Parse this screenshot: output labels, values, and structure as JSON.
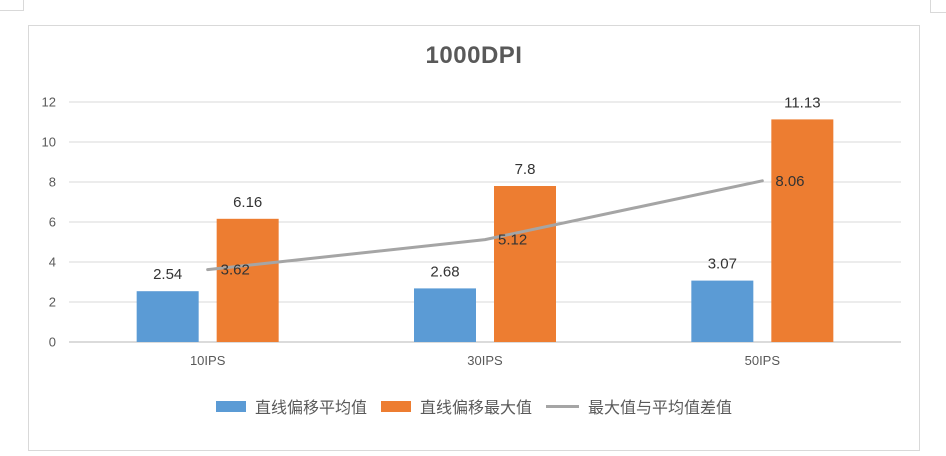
{
  "chart_data": {
    "type": "bar",
    "subtype": "clustered-column-with-line-overlay",
    "title": "1000DPI",
    "categories": [
      "10IPS",
      "30IPS",
      "50IPS"
    ],
    "series": [
      {
        "name": "直线偏移平均值",
        "type": "bar",
        "color": "#5B9BD5",
        "values": [
          2.54,
          2.68,
          3.07
        ],
        "labels": [
          "2.54",
          "2.68",
          "3.07"
        ]
      },
      {
        "name": "直线偏移最大值",
        "type": "bar",
        "color": "#ED7D31",
        "values": [
          6.16,
          7.8,
          11.13
        ],
        "labels": [
          "6.16",
          "7.8",
          "11.13"
        ]
      },
      {
        "name": "最大值与平均值差值",
        "type": "line",
        "color": "#A5A5A5",
        "values": [
          3.62,
          5.12,
          8.06
        ],
        "labels": [
          "3.62",
          "5.12",
          "8.06"
        ]
      }
    ],
    "y_axis": {
      "min": 0,
      "max": 12,
      "step": 2,
      "tick_labels": [
        "0",
        "2",
        "4",
        "6",
        "8",
        "10",
        "12"
      ]
    },
    "x_axis": {
      "tick_labels": [
        "10IPS",
        "30IPS",
        "50IPS"
      ]
    },
    "grid": true,
    "data_labels": true,
    "legend_position": "bottom"
  },
  "colors": {
    "background": "#FFFFFF",
    "chart_border": "#D9D9D9",
    "gridline": "#D9D9D9",
    "axis_line": "#B7B7B7",
    "axis_text": "#595959",
    "title_text": "#595959",
    "data_label_text": "#333333",
    "legend_text": "#595959"
  }
}
